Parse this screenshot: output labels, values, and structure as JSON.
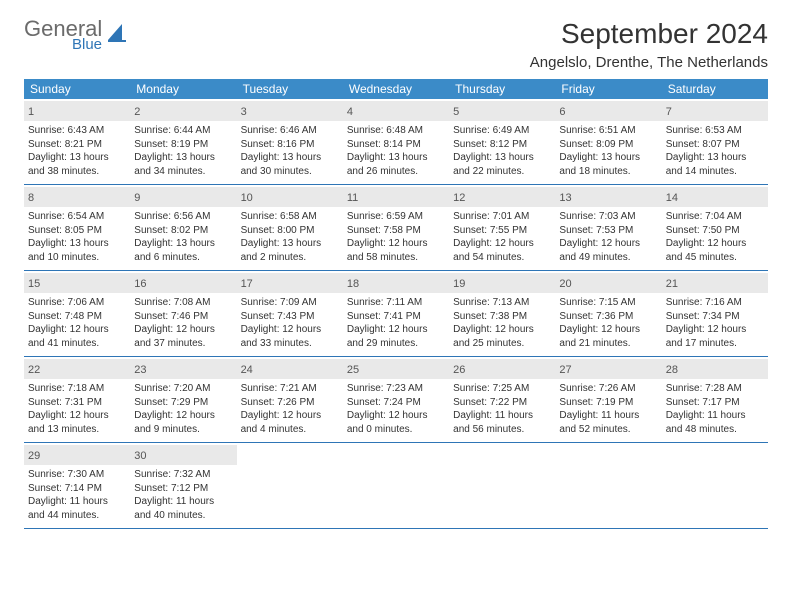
{
  "brand": {
    "name_gray": "General",
    "name_blue": "Blue"
  },
  "title": "September 2024",
  "location": "Angelslo, Drenthe, The Netherlands",
  "colors": {
    "header_bg": "#3b8bc8",
    "header_text": "#ffffff",
    "daynum_bg": "#e9e9e9",
    "row_border": "#2e75b6",
    "text": "#333333",
    "brand_gray": "#6b6b6b",
    "brand_blue": "#2e75b6"
  },
  "weekdays": [
    "Sunday",
    "Monday",
    "Tuesday",
    "Wednesday",
    "Thursday",
    "Friday",
    "Saturday"
  ],
  "weeks": [
    [
      {
        "n": "1",
        "sr": "6:43 AM",
        "ss": "8:21 PM",
        "dl": "13 hours and 38 minutes."
      },
      {
        "n": "2",
        "sr": "6:44 AM",
        "ss": "8:19 PM",
        "dl": "13 hours and 34 minutes."
      },
      {
        "n": "3",
        "sr": "6:46 AM",
        "ss": "8:16 PM",
        "dl": "13 hours and 30 minutes."
      },
      {
        "n": "4",
        "sr": "6:48 AM",
        "ss": "8:14 PM",
        "dl": "13 hours and 26 minutes."
      },
      {
        "n": "5",
        "sr": "6:49 AM",
        "ss": "8:12 PM",
        "dl": "13 hours and 22 minutes."
      },
      {
        "n": "6",
        "sr": "6:51 AM",
        "ss": "8:09 PM",
        "dl": "13 hours and 18 minutes."
      },
      {
        "n": "7",
        "sr": "6:53 AM",
        "ss": "8:07 PM",
        "dl": "13 hours and 14 minutes."
      }
    ],
    [
      {
        "n": "8",
        "sr": "6:54 AM",
        "ss": "8:05 PM",
        "dl": "13 hours and 10 minutes."
      },
      {
        "n": "9",
        "sr": "6:56 AM",
        "ss": "8:02 PM",
        "dl": "13 hours and 6 minutes."
      },
      {
        "n": "10",
        "sr": "6:58 AM",
        "ss": "8:00 PM",
        "dl": "13 hours and 2 minutes."
      },
      {
        "n": "11",
        "sr": "6:59 AM",
        "ss": "7:58 PM",
        "dl": "12 hours and 58 minutes."
      },
      {
        "n": "12",
        "sr": "7:01 AM",
        "ss": "7:55 PM",
        "dl": "12 hours and 54 minutes."
      },
      {
        "n": "13",
        "sr": "7:03 AM",
        "ss": "7:53 PM",
        "dl": "12 hours and 49 minutes."
      },
      {
        "n": "14",
        "sr": "7:04 AM",
        "ss": "7:50 PM",
        "dl": "12 hours and 45 minutes."
      }
    ],
    [
      {
        "n": "15",
        "sr": "7:06 AM",
        "ss": "7:48 PM",
        "dl": "12 hours and 41 minutes."
      },
      {
        "n": "16",
        "sr": "7:08 AM",
        "ss": "7:46 PM",
        "dl": "12 hours and 37 minutes."
      },
      {
        "n": "17",
        "sr": "7:09 AM",
        "ss": "7:43 PM",
        "dl": "12 hours and 33 minutes."
      },
      {
        "n": "18",
        "sr": "7:11 AM",
        "ss": "7:41 PM",
        "dl": "12 hours and 29 minutes."
      },
      {
        "n": "19",
        "sr": "7:13 AM",
        "ss": "7:38 PM",
        "dl": "12 hours and 25 minutes."
      },
      {
        "n": "20",
        "sr": "7:15 AM",
        "ss": "7:36 PM",
        "dl": "12 hours and 21 minutes."
      },
      {
        "n": "21",
        "sr": "7:16 AM",
        "ss": "7:34 PM",
        "dl": "12 hours and 17 minutes."
      }
    ],
    [
      {
        "n": "22",
        "sr": "7:18 AM",
        "ss": "7:31 PM",
        "dl": "12 hours and 13 minutes."
      },
      {
        "n": "23",
        "sr": "7:20 AM",
        "ss": "7:29 PM",
        "dl": "12 hours and 9 minutes."
      },
      {
        "n": "24",
        "sr": "7:21 AM",
        "ss": "7:26 PM",
        "dl": "12 hours and 4 minutes."
      },
      {
        "n": "25",
        "sr": "7:23 AM",
        "ss": "7:24 PM",
        "dl": "12 hours and 0 minutes."
      },
      {
        "n": "26",
        "sr": "7:25 AM",
        "ss": "7:22 PM",
        "dl": "11 hours and 56 minutes."
      },
      {
        "n": "27",
        "sr": "7:26 AM",
        "ss": "7:19 PM",
        "dl": "11 hours and 52 minutes."
      },
      {
        "n": "28",
        "sr": "7:28 AM",
        "ss": "7:17 PM",
        "dl": "11 hours and 48 minutes."
      }
    ],
    [
      {
        "n": "29",
        "sr": "7:30 AM",
        "ss": "7:14 PM",
        "dl": "11 hours and 44 minutes."
      },
      {
        "n": "30",
        "sr": "7:32 AM",
        "ss": "7:12 PM",
        "dl": "11 hours and 40 minutes."
      },
      null,
      null,
      null,
      null,
      null
    ]
  ],
  "labels": {
    "sunrise": "Sunrise:",
    "sunset": "Sunset:",
    "daylight": "Daylight:"
  }
}
